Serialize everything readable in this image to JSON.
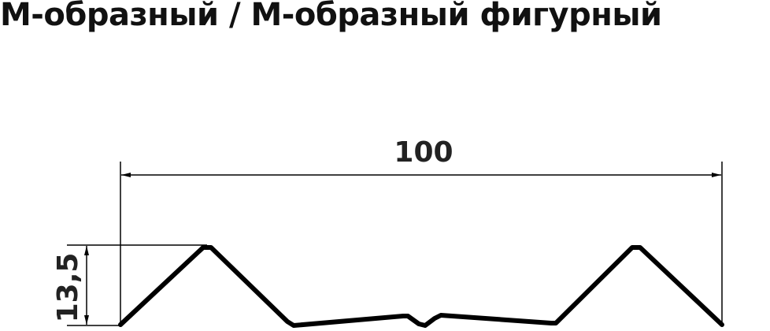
{
  "title": "М-образный / М-образный фигурный",
  "dimensions": {
    "width": "100",
    "height": "13,5"
  },
  "colors": {
    "profile": "#000000",
    "text": "#222222"
  }
}
